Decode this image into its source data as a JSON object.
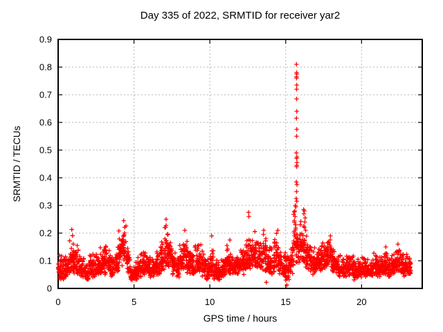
{
  "figure": {
    "title": "Day 335 of 2022, SRMTID for receiver yar2",
    "xlabel": "GPS time / hours",
    "ylabel": "SRMTID / TECUs"
  },
  "chart_data": {
    "type": "scatter",
    "title": "Day 335 of 2022, SRMTID for receiver yar2",
    "xlabel": "GPS time / hours",
    "ylabel": "SRMTID / TECUs",
    "xlim": [
      0,
      24
    ],
    "ylim": [
      0,
      0.9
    ],
    "x_ticks": [
      {
        "v": 0,
        "label": "0"
      },
      {
        "v": 5,
        "label": "5"
      },
      {
        "v": 10,
        "label": "10"
      },
      {
        "v": 15,
        "label": "15"
      },
      {
        "v": 20,
        "label": "20"
      }
    ],
    "y_ticks": [
      {
        "v": 0.0,
        "label": "0"
      },
      {
        "v": 0.1,
        "label": "0.1"
      },
      {
        "v": 0.2,
        "label": "0.2"
      },
      {
        "v": 0.3,
        "label": "0.3"
      },
      {
        "v": 0.4,
        "label": "0.4"
      },
      {
        "v": 0.5,
        "label": "0.5"
      },
      {
        "v": 0.6,
        "label": "0.6"
      },
      {
        "v": 0.7,
        "label": "0.7"
      },
      {
        "v": 0.8,
        "label": "0.8"
      },
      {
        "v": 0.9,
        "label": "0.9"
      }
    ],
    "grid": "dashed",
    "grid_color": "#b3b3b3",
    "legend": "none",
    "marker": "plus",
    "marker_color": "#ff0000",
    "series_name": "SRMTID",
    "data_start_hour": 0.0,
    "data_end_hour": 23.25,
    "envelope_bins_note": "dense 30s-cadence cloud summarized as [t_start_hour, v_min, v_max] per 0.25 h bin",
    "bin_width_hours": 0.25,
    "points_per_bin": 28,
    "seed": 335,
    "envelope_bins": [
      [
        0.0,
        0.03,
        0.13
      ],
      [
        0.25,
        0.03,
        0.12
      ],
      [
        0.5,
        0.04,
        0.14
      ],
      [
        0.75,
        0.05,
        0.21
      ],
      [
        1.0,
        0.05,
        0.16
      ],
      [
        1.25,
        0.05,
        0.17
      ],
      [
        1.5,
        0.04,
        0.12
      ],
      [
        1.75,
        0.03,
        0.1
      ],
      [
        2.0,
        0.04,
        0.13
      ],
      [
        2.25,
        0.04,
        0.14
      ],
      [
        2.5,
        0.05,
        0.14
      ],
      [
        2.75,
        0.05,
        0.16
      ],
      [
        3.0,
        0.05,
        0.17
      ],
      [
        3.25,
        0.05,
        0.15
      ],
      [
        3.5,
        0.04,
        0.13
      ],
      [
        3.75,
        0.06,
        0.16
      ],
      [
        4.0,
        0.08,
        0.22
      ],
      [
        4.25,
        0.1,
        0.245
      ],
      [
        4.5,
        0.05,
        0.15
      ],
      [
        4.75,
        0.03,
        0.09
      ],
      [
        5.0,
        0.03,
        0.1
      ],
      [
        5.25,
        0.04,
        0.13
      ],
      [
        5.5,
        0.05,
        0.15
      ],
      [
        5.75,
        0.05,
        0.14
      ],
      [
        6.0,
        0.04,
        0.12
      ],
      [
        6.25,
        0.04,
        0.12
      ],
      [
        6.5,
        0.05,
        0.15
      ],
      [
        6.75,
        0.06,
        0.17
      ],
      [
        7.0,
        0.08,
        0.25
      ],
      [
        7.25,
        0.07,
        0.21
      ],
      [
        7.5,
        0.05,
        0.15
      ],
      [
        7.75,
        0.04,
        0.13
      ],
      [
        8.0,
        0.06,
        0.16
      ],
      [
        8.25,
        0.07,
        0.21
      ],
      [
        8.5,
        0.05,
        0.16
      ],
      [
        8.75,
        0.04,
        0.14
      ],
      [
        9.0,
        0.05,
        0.16
      ],
      [
        9.25,
        0.05,
        0.17
      ],
      [
        9.5,
        0.04,
        0.13
      ],
      [
        9.75,
        0.03,
        0.12
      ],
      [
        10.0,
        0.04,
        0.15
      ],
      [
        10.25,
        0.03,
        0.11
      ],
      [
        10.5,
        0.03,
        0.1
      ],
      [
        10.75,
        0.04,
        0.12
      ],
      [
        11.0,
        0.04,
        0.17
      ],
      [
        11.25,
        0.05,
        0.16
      ],
      [
        11.5,
        0.05,
        0.13
      ],
      [
        11.75,
        0.05,
        0.14
      ],
      [
        12.0,
        0.05,
        0.16
      ],
      [
        12.25,
        0.06,
        0.19
      ],
      [
        12.5,
        0.07,
        0.22
      ],
      [
        12.75,
        0.07,
        0.21
      ],
      [
        13.0,
        0.07,
        0.2
      ],
      [
        13.25,
        0.06,
        0.18
      ],
      [
        13.5,
        0.06,
        0.21
      ],
      [
        13.75,
        0.05,
        0.18
      ],
      [
        14.0,
        0.05,
        0.16
      ],
      [
        14.25,
        0.06,
        0.21
      ],
      [
        14.5,
        0.05,
        0.17
      ],
      [
        14.75,
        0.04,
        0.15
      ],
      [
        15.0,
        0.02,
        0.14
      ],
      [
        15.25,
        0.05,
        0.18
      ],
      [
        15.5,
        0.08,
        0.3
      ],
      [
        15.75,
        0.08,
        0.28
      ],
      [
        16.0,
        0.08,
        0.25
      ],
      [
        16.25,
        0.07,
        0.22
      ],
      [
        16.5,
        0.06,
        0.17
      ],
      [
        16.75,
        0.05,
        0.15
      ],
      [
        17.0,
        0.06,
        0.16
      ],
      [
        17.25,
        0.06,
        0.17
      ],
      [
        17.5,
        0.07,
        0.19
      ],
      [
        17.75,
        0.07,
        0.19
      ],
      [
        18.0,
        0.06,
        0.16
      ],
      [
        18.25,
        0.05,
        0.13
      ],
      [
        18.5,
        0.04,
        0.12
      ],
      [
        18.75,
        0.04,
        0.11
      ],
      [
        19.0,
        0.04,
        0.12
      ],
      [
        19.25,
        0.04,
        0.13
      ],
      [
        19.5,
        0.03,
        0.11
      ],
      [
        19.75,
        0.04,
        0.11
      ],
      [
        20.0,
        0.04,
        0.12
      ],
      [
        20.25,
        0.04,
        0.12
      ],
      [
        20.5,
        0.03,
        0.11
      ],
      [
        20.75,
        0.04,
        0.13
      ],
      [
        21.0,
        0.04,
        0.12
      ],
      [
        21.25,
        0.05,
        0.14
      ],
      [
        21.5,
        0.05,
        0.15
      ],
      [
        21.75,
        0.04,
        0.12
      ],
      [
        22.0,
        0.05,
        0.13
      ],
      [
        22.25,
        0.05,
        0.16
      ],
      [
        22.5,
        0.05,
        0.15
      ],
      [
        22.75,
        0.04,
        0.13
      ],
      [
        23.0,
        0.04,
        0.12
      ]
    ],
    "peak_points_note": "individually resolvable markers [hour, value], dominated by the large TID spike near 15.7 h",
    "peak_points": [
      [
        15.71,
        0.81
      ],
      [
        15.72,
        0.78
      ],
      [
        15.73,
        0.775
      ],
      [
        15.71,
        0.765
      ],
      [
        15.72,
        0.76
      ],
      [
        15.73,
        0.735
      ],
      [
        15.72,
        0.72
      ],
      [
        15.72,
        0.685
      ],
      [
        15.73,
        0.64
      ],
      [
        15.71,
        0.615
      ],
      [
        15.73,
        0.575
      ],
      [
        15.72,
        0.55
      ],
      [
        15.7,
        0.49
      ],
      [
        15.74,
        0.475
      ],
      [
        15.72,
        0.47
      ],
      [
        15.74,
        0.455
      ],
      [
        15.73,
        0.445
      ],
      [
        15.72,
        0.44
      ],
      [
        15.7,
        0.385
      ],
      [
        15.74,
        0.375
      ],
      [
        15.72,
        0.35
      ],
      [
        15.69,
        0.325
      ],
      [
        15.73,
        0.315
      ],
      [
        15.63,
        0.3
      ],
      [
        15.67,
        0.295
      ],
      [
        15.6,
        0.28
      ],
      [
        15.62,
        0.26
      ],
      [
        15.57,
        0.245
      ],
      [
        15.66,
        0.23
      ],
      [
        16.18,
        0.285
      ],
      [
        16.23,
        0.28
      ],
      [
        16.2,
        0.27
      ],
      [
        16.28,
        0.255
      ],
      [
        16.26,
        0.24
      ],
      [
        16.19,
        0.225
      ],
      [
        16.31,
        0.21
      ],
      [
        12.55,
        0.275
      ],
      [
        12.57,
        0.26
      ],
      [
        4.32,
        0.245
      ],
      [
        7.12,
        0.25
      ],
      [
        0.9,
        0.213
      ],
      [
        14.48,
        0.21
      ],
      [
        13.55,
        0.21
      ],
      [
        8.35,
        0.21
      ],
      [
        10.12,
        0.19
      ],
      [
        17.95,
        0.19
      ],
      [
        11.32,
        0.175
      ],
      [
        21.6,
        0.15
      ],
      [
        22.4,
        0.16
      ],
      [
        15.08,
        0.012
      ],
      [
        13.72,
        0.022
      ]
    ]
  }
}
